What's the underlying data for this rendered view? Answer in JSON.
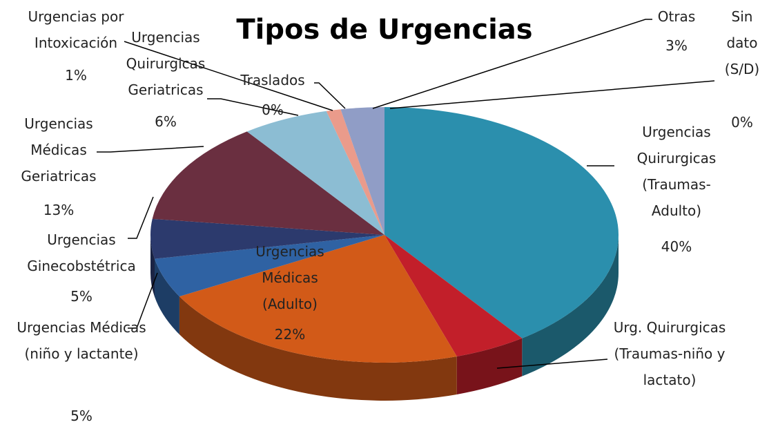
{
  "chart_data": {
    "type": "pie3d",
    "title": "Tipos de Urgencias",
    "labels": [
      "Urgencias Quirurgicas (Traumas-Adulto)",
      "Urg. Quirurgicas (Traumas-niño y lactato)",
      "Urgencias Médicas (Adulto)",
      "Urgencias Médicas (niño y lactante)",
      "Urgencias Ginecobstétrica",
      "Urgencias Médicas Geriatricas",
      "Urgencias Quirurgicas Geriatricas",
      "Traslados",
      "Urgencias por Intoxicación",
      "Otras",
      "Sin dato (S/D)"
    ],
    "values": [
      40,
      5,
      22,
      5,
      5,
      13,
      6,
      0,
      1,
      3,
      0
    ],
    "value_labels": [
      "40%",
      null,
      "22%",
      "5%",
      "5%",
      "13%",
      "6%",
      "0%",
      "1%",
      "3%",
      "0%"
    ],
    "colors": [
      "#2b8fad",
      "#c21f2a",
      "#d25a18",
      "#2f62a3",
      "#2c3a6d",
      "#6a2f40",
      "#8cbdd3",
      "#c9a36a",
      "#ea9b8b",
      "#909dc6",
      "#a6b43a"
    ]
  }
}
